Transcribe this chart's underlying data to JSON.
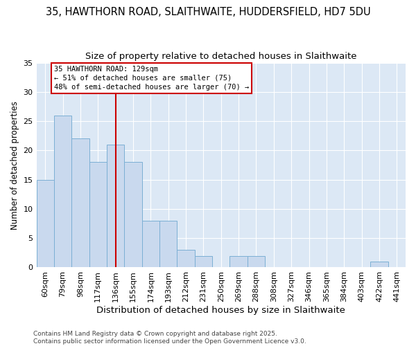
{
  "title": "35, HAWTHORN ROAD, SLAITHWAITE, HUDDERSFIELD, HD7 5DU",
  "subtitle": "Size of property relative to detached houses in Slaithwaite",
  "xlabel": "Distribution of detached houses by size in Slaithwaite",
  "ylabel": "Number of detached properties",
  "categories": [
    "60sqm",
    "79sqm",
    "98sqm",
    "117sqm",
    "136sqm",
    "155sqm",
    "174sqm",
    "193sqm",
    "212sqm",
    "231sqm",
    "250sqm",
    "269sqm",
    "288sqm",
    "308sqm",
    "327sqm",
    "346sqm",
    "365sqm",
    "384sqm",
    "403sqm",
    "422sqm",
    "441sqm"
  ],
  "values": [
    15,
    26,
    22,
    18,
    21,
    18,
    8,
    8,
    3,
    2,
    0,
    2,
    2,
    0,
    0,
    0,
    0,
    0,
    0,
    1,
    0
  ],
  "bar_color": "#c9d9ee",
  "bar_edge_color": "#7bafd4",
  "property_line_x": 4,
  "property_line_label": "35 HAWTHORN ROAD: 129sqm",
  "annotation_line1": "← 51% of detached houses are smaller (75)",
  "annotation_line2": "48% of semi-detached houses are larger (70) →",
  "vline_color": "#cc0000",
  "box_edge_color": "#cc0000",
  "ylim": [
    0,
    35
  ],
  "yticks": [
    0,
    5,
    10,
    15,
    20,
    25,
    30,
    35
  ],
  "plot_bg_color": "#dce8f5",
  "fig_bg_color": "#ffffff",
  "grid_color": "#ffffff",
  "footer": "Contains HM Land Registry data © Crown copyright and database right 2025.\nContains public sector information licensed under the Open Government Licence v3.0.",
  "title_fontsize": 10.5,
  "subtitle_fontsize": 9.5,
  "xlabel_fontsize": 9.5,
  "ylabel_fontsize": 8.5,
  "tick_fontsize": 8,
  "footer_fontsize": 6.5
}
